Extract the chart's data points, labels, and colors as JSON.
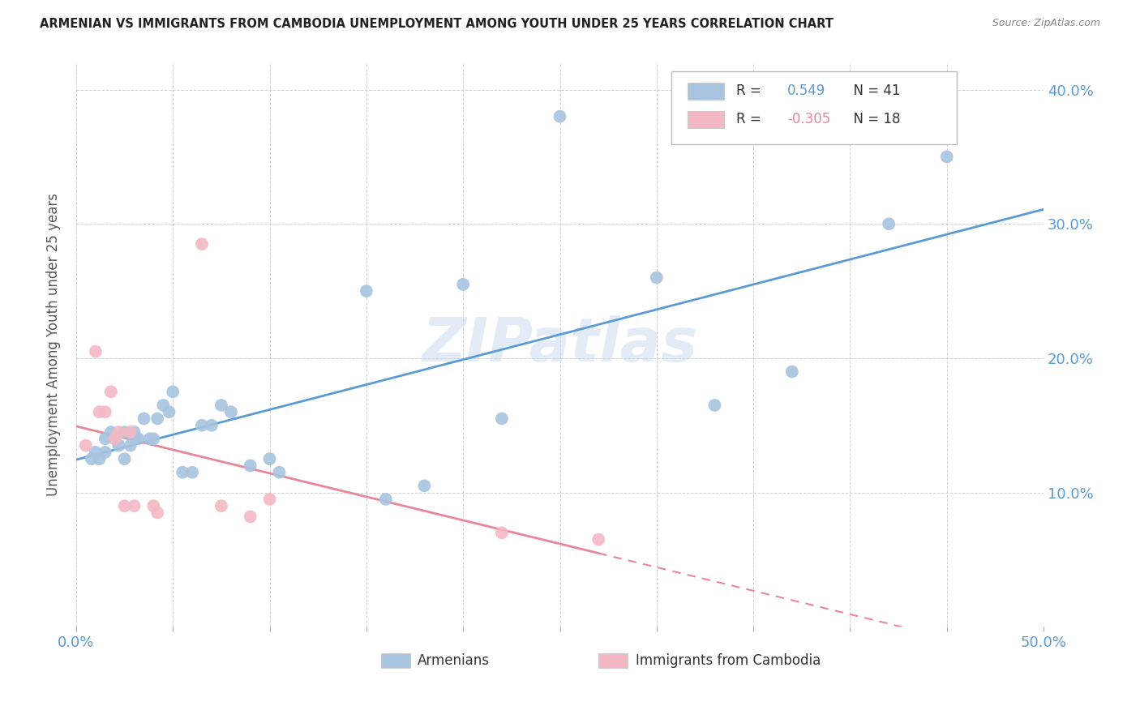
{
  "title": "ARMENIAN VS IMMIGRANTS FROM CAMBODIA UNEMPLOYMENT AMONG YOUTH UNDER 25 YEARS CORRELATION CHART",
  "source": "Source: ZipAtlas.com",
  "ylabel": "Unemployment Among Youth under 25 years",
  "xlim": [
    0.0,
    0.5
  ],
  "ylim": [
    0.0,
    0.42
  ],
  "blue_color": "#a8c4e0",
  "pink_color": "#f4b8c4",
  "blue_line_color": "#5b9bd5",
  "pink_line_color": "#e8869a",
  "legend_R1": "0.549",
  "legend_N1": "41",
  "legend_R2": "-0.305",
  "legend_N2": "18",
  "watermark": "ZIPatlas",
  "armenians_x": [
    0.008,
    0.01,
    0.012,
    0.015,
    0.015,
    0.018,
    0.02,
    0.022,
    0.025,
    0.025,
    0.028,
    0.03,
    0.03,
    0.032,
    0.035,
    0.038,
    0.04,
    0.042,
    0.045,
    0.048,
    0.05,
    0.055,
    0.06,
    0.065,
    0.07,
    0.075,
    0.08,
    0.09,
    0.1,
    0.105,
    0.15,
    0.16,
    0.18,
    0.2,
    0.22,
    0.25,
    0.3,
    0.33,
    0.37,
    0.42,
    0.45
  ],
  "armenians_y": [
    0.125,
    0.13,
    0.125,
    0.13,
    0.14,
    0.145,
    0.14,
    0.135,
    0.125,
    0.145,
    0.135,
    0.14,
    0.145,
    0.14,
    0.155,
    0.14,
    0.14,
    0.155,
    0.165,
    0.16,
    0.175,
    0.115,
    0.115,
    0.15,
    0.15,
    0.165,
    0.16,
    0.12,
    0.125,
    0.115,
    0.25,
    0.095,
    0.105,
    0.255,
    0.155,
    0.38,
    0.26,
    0.165,
    0.19,
    0.3,
    0.35
  ],
  "cambodia_x": [
    0.005,
    0.01,
    0.012,
    0.015,
    0.018,
    0.02,
    0.022,
    0.025,
    0.028,
    0.03,
    0.04,
    0.042,
    0.065,
    0.075,
    0.09,
    0.1,
    0.22,
    0.27
  ],
  "cambodia_y": [
    0.135,
    0.205,
    0.16,
    0.16,
    0.175,
    0.14,
    0.145,
    0.09,
    0.145,
    0.09,
    0.09,
    0.085,
    0.285,
    0.09,
    0.082,
    0.095,
    0.07,
    0.065
  ]
}
